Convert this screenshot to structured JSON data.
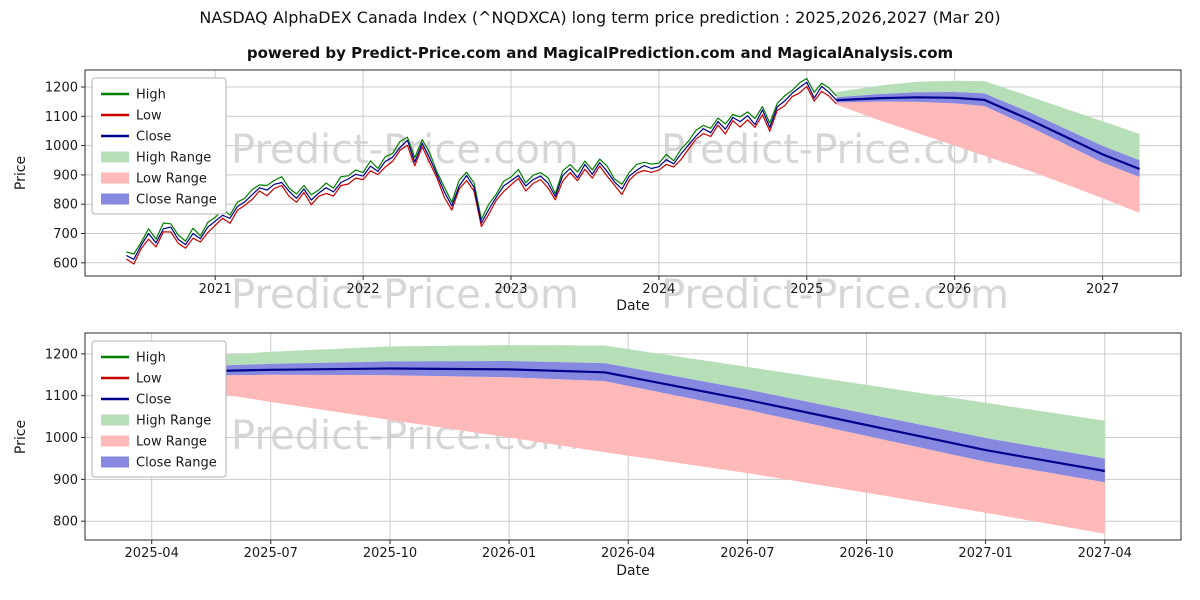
{
  "page": {
    "title": "NASDAQ AlphaDEX Canada Index (^NQDXCA) long term price prediction : 2025,2026,2027 (Mar 20)",
    "subtitle": "powered by Predict-Price.com and MagicalPrediction.com and MagicalAnalysis.com",
    "watermark": "Predict-Price.com"
  },
  "colors": {
    "high": "#008000",
    "low": "#cc0000",
    "close": "#00008b",
    "high_range": "#b7dfb7",
    "low_range": "#ffb9b9",
    "close_range": "#8789e0",
    "grid": "#cccccc",
    "frame": "#2b2b2b"
  },
  "legend": [
    {
      "label": "High",
      "swatch": "line",
      "color_key": "high"
    },
    {
      "label": "Low",
      "swatch": "line",
      "color_key": "low"
    },
    {
      "label": "Close",
      "swatch": "line",
      "color_key": "close"
    },
    {
      "label": "High Range",
      "swatch": "patch",
      "color_key": "high_range"
    },
    {
      "label": "Low Range",
      "swatch": "patch",
      "color_key": "low_range"
    },
    {
      "label": "Close Range",
      "swatch": "patch",
      "color_key": "close_range"
    }
  ],
  "chart_data": [
    {
      "type": "line",
      "xlabel": "Date",
      "ylabel": "Price",
      "xlim": [
        2020.12,
        2027.53
      ],
      "ylim": [
        555,
        1258
      ],
      "xticks": [
        {
          "v": 2021,
          "label": "2021"
        },
        {
          "v": 2022,
          "label": "2022"
        },
        {
          "v": 2023,
          "label": "2023"
        },
        {
          "v": 2024,
          "label": "2024"
        },
        {
          "v": 2025,
          "label": "2025"
        },
        {
          "v": 2026,
          "label": "2026"
        },
        {
          "v": 2027,
          "label": "2027"
        }
      ],
      "yticks": [
        600,
        700,
        800,
        900,
        1000,
        1100,
        1200
      ],
      "historical": {
        "x_start": 2020.4,
        "x_step": 0.05,
        "close": [
          625,
          612,
          660,
          700,
          668,
          716,
          722,
          680,
          662,
          700,
          682,
          722,
          742,
          762,
          752,
          792,
          808,
          832,
          856,
          848,
          868,
          874,
          844,
          820,
          852,
          814,
          838,
          856,
          842,
          874,
          886,
          902,
          896,
          930,
          912,
          946,
          960,
          994,
          1018,
          944,
          1008,
          958,
          900,
          842,
          794,
          862,
          898,
          858,
          736,
          782,
          824,
          862,
          880,
          898,
          862,
          884,
          896,
          872,
          826,
          898,
          922,
          890,
          936,
          902,
          942,
          912,
          876,
          852,
          896,
          916,
          932,
          922,
          928,
          952,
          938,
          972,
          1002,
          1032,
          1058,
          1044,
          1082,
          1056,
          1096,
          1082,
          1102,
          1072,
          1122,
          1062,
          1132,
          1152,
          1178,
          1198,
          1216,
          1162,
          1202,
          1182,
          1155
        ],
        "high": [
          637,
          630,
          670,
          716,
          681,
          736,
          733,
          695,
          674,
          718,
          692,
          738,
          755,
          782,
          763,
          807,
          820,
          850,
          866,
          864,
          881,
          894,
          855,
          835,
          864,
          832,
          848,
          872,
          855,
          894,
          897,
          917,
          908,
          948,
          922,
          962,
          973,
          1014,
          1029,
          959,
          1020,
          976,
          910,
          858,
          807,
          882,
          909,
          873,
          748,
          800,
          834,
          878,
          893,
          918,
          873,
          899,
          908,
          890,
          836,
          914,
          935,
          910,
          947,
          917,
          954,
          930,
          886,
          868,
          909,
          936,
          943,
          937,
          940,
          970,
          948,
          988,
          1015,
          1052,
          1069,
          1059,
          1094,
          1074,
          1106,
          1098,
          1115,
          1092,
          1133,
          1077,
          1144,
          1170,
          1188,
          1214,
          1229,
          1182,
          1213,
          1197,
          1170
        ],
        "low": [
          613,
          596,
          649,
          681,
          654,
          706,
          705,
          667,
          650,
          684,
          671,
          703,
          728,
          752,
          735,
          779,
          796,
          816,
          845,
          829,
          854,
          864,
          827,
          807,
          840,
          798,
          827,
          837,
          828,
          864,
          869,
          889,
          884,
          914,
          901,
          927,
          946,
          984,
          1001,
          931,
          996,
          942,
          889,
          823,
          780,
          852,
          881,
          845,
          724,
          766,
          813,
          843,
          866,
          888,
          845,
          871,
          884,
          856,
          815,
          879,
          908,
          880,
          919,
          889,
          930,
          896,
          865,
          833,
          882,
          906,
          915,
          909,
          916,
          936,
          927,
          953,
          988,
          1022,
          1041,
          1031,
          1070,
          1040,
          1085,
          1063,
          1088,
          1062,
          1105,
          1049,
          1120,
          1136,
          1167,
          1179,
          1202,
          1152,
          1185,
          1169,
          1142
        ]
      },
      "forecast": {
        "x": [
          2025.2,
          2025.5,
          2025.75,
          2026.0,
          2026.2,
          2026.5,
          2026.75,
          2027.0,
          2027.25
        ],
        "close": [
          1155,
          1162,
          1165,
          1163,
          1156,
          1090,
          1030,
          970,
          920
        ],
        "bands": {
          "high_top": [
            1183,
            1205,
            1218,
            1221,
            1220,
            1169,
            1126,
            1083,
            1040
          ],
          "close_top": [
            1165,
            1176,
            1182,
            1183,
            1178,
            1115,
            1057,
            999,
            950
          ],
          "close_bot": [
            1147,
            1150,
            1149,
            1144,
            1135,
            1066,
            1004,
            942,
            893
          ],
          "low_bot": [
            1140,
            1085,
            1042,
            1000,
            965,
            915,
            868,
            820,
            770
          ]
        }
      }
    },
    {
      "type": "line",
      "xlabel": "Date",
      "ylabel": "Price",
      "xlim": [
        2025.11,
        2027.41
      ],
      "ylim": [
        755,
        1250
      ],
      "xticks": [
        {
          "v": 2025.25,
          "label": "2025-04"
        },
        {
          "v": 2025.5,
          "label": "2025-07"
        },
        {
          "v": 2025.75,
          "label": "2025-10"
        },
        {
          "v": 2026.0,
          "label": "2026-01"
        },
        {
          "v": 2026.25,
          "label": "2026-04"
        },
        {
          "v": 2026.5,
          "label": "2026-07"
        },
        {
          "v": 2026.75,
          "label": "2026-10"
        },
        {
          "v": 2027.0,
          "label": "2027-01"
        },
        {
          "v": 2027.25,
          "label": "2027-04"
        }
      ],
      "yticks": [
        800,
        900,
        1000,
        1100,
        1200
      ],
      "forecast": {
        "x": [
          2025.2,
          2025.5,
          2025.75,
          2026.0,
          2026.2,
          2026.5,
          2026.75,
          2027.0,
          2027.25
        ],
        "close": [
          1155,
          1162,
          1165,
          1163,
          1156,
          1090,
          1030,
          970,
          920
        ],
        "bands": {
          "high_top": [
            1183,
            1205,
            1218,
            1221,
            1220,
            1169,
            1126,
            1083,
            1040
          ],
          "close_top": [
            1165,
            1176,
            1182,
            1183,
            1178,
            1115,
            1057,
            999,
            950
          ],
          "close_bot": [
            1147,
            1150,
            1149,
            1144,
            1135,
            1066,
            1004,
            942,
            893
          ],
          "low_bot": [
            1140,
            1085,
            1042,
            1000,
            965,
            915,
            868,
            820,
            770
          ]
        }
      }
    }
  ]
}
